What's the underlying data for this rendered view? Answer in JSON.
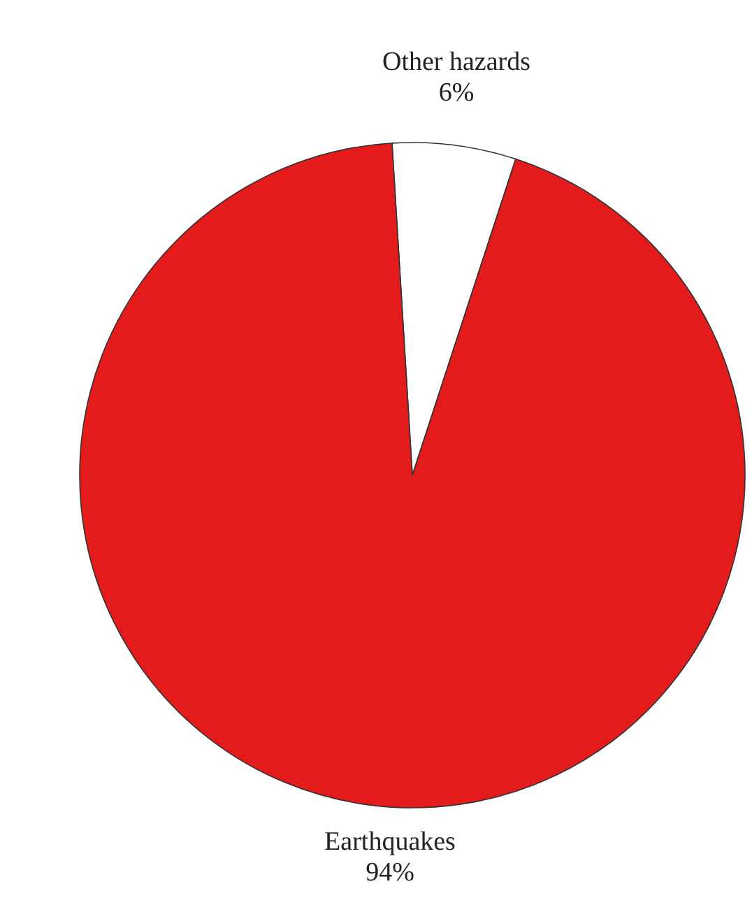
{
  "chart_data": {
    "type": "pie",
    "categories": [
      "Other hazards",
      "Earthquakes"
    ],
    "values": [
      6,
      94
    ],
    "value_labels": [
      "6%",
      "94%"
    ],
    "colors": [
      "#ffffff",
      "#e31b1b"
    ]
  }
}
